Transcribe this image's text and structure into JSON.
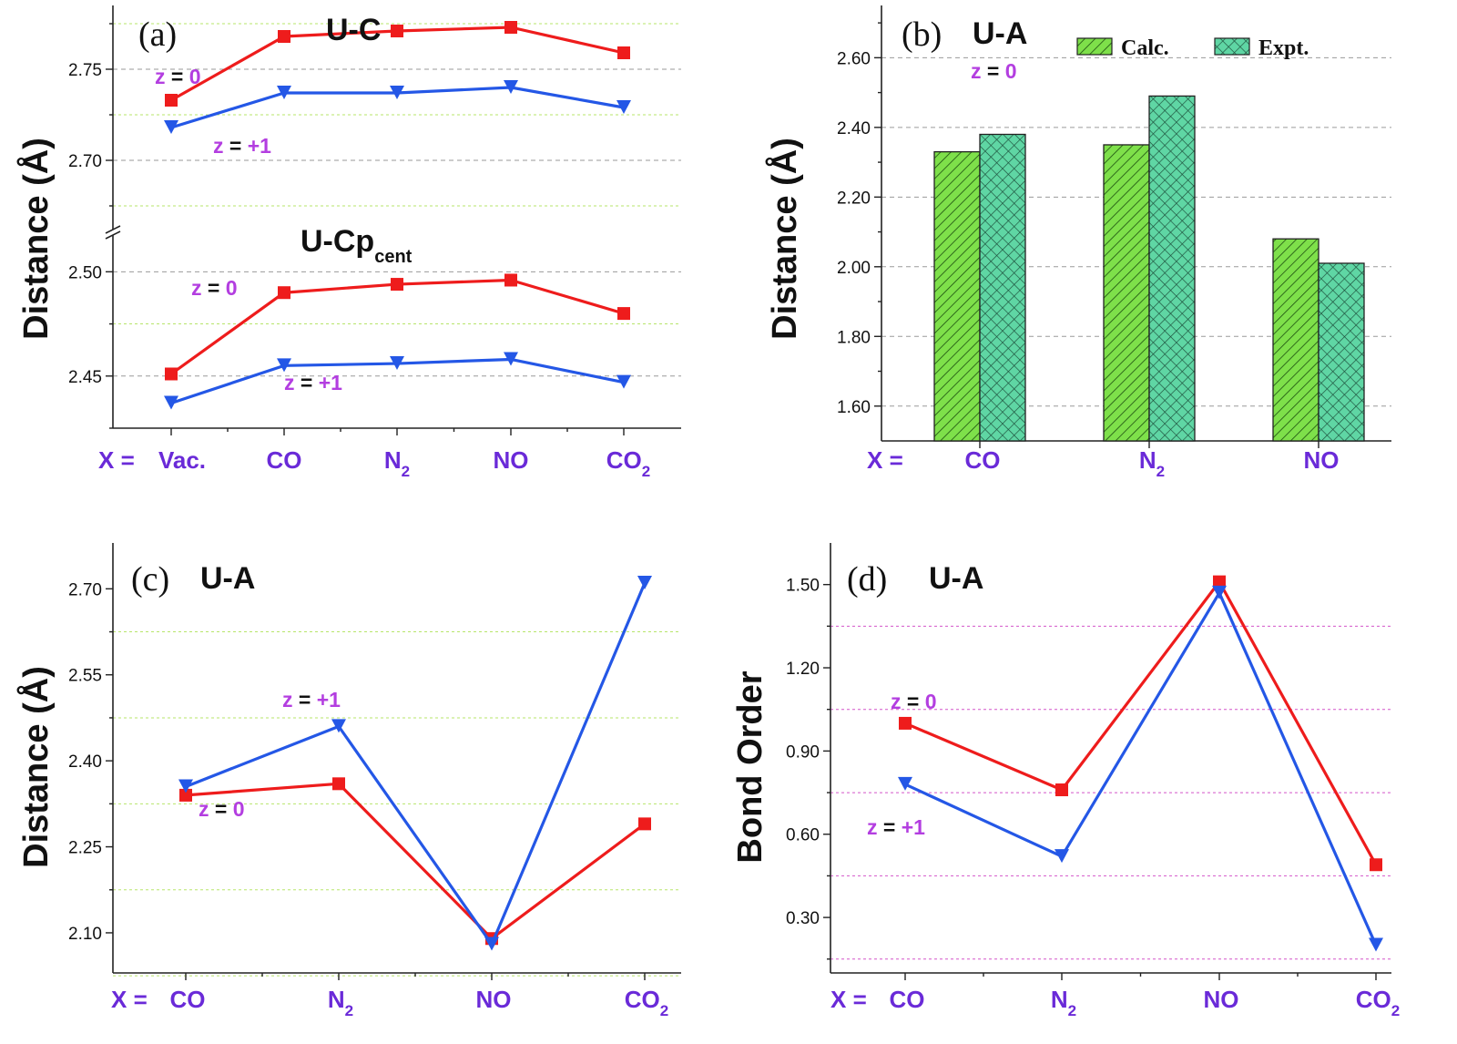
{
  "colors": {
    "z0": "#ee1c1c",
    "z1": "#2457e6",
    "label_purple": "#b33ee0",
    "category_purple": "#6a2ad8",
    "calc_fill": "#7ee04a",
    "expt_fill": "#5fd6a4",
    "grid_green": "#b7e56a",
    "grid_gray": "#9a9a9a",
    "grid_magenta": "#d455c9"
  },
  "chart_data": [
    {
      "id": "a",
      "type": "line",
      "panel_label": "(a)",
      "ylabel": "Distance (Å)",
      "x_prefix": "X =",
      "categories": [
        "Vac.",
        "CO",
        "N2",
        "NO",
        "CO2"
      ],
      "upper": {
        "title": "U-C",
        "ylim": [
          2.665,
          2.785
        ],
        "ticks": [
          "2.70",
          "2.75"
        ],
        "series": [
          {
            "name": "z = 0",
            "marker": "square",
            "values": [
              2.733,
              2.768,
              2.771,
              2.773,
              2.759
            ]
          },
          {
            "name": "z = +1",
            "marker": "triangle-down",
            "values": [
              2.718,
              2.737,
              2.737,
              2.74,
              2.729
            ]
          }
        ]
      },
      "lower": {
        "title_main": "U-Cp",
        "title_sub": "cent",
        "ylim": [
          2.425,
          2.515
        ],
        "ticks": [
          "2.45",
          "2.50"
        ],
        "series": [
          {
            "name": "z = 0",
            "marker": "square",
            "values": [
              2.451,
              2.49,
              2.494,
              2.496,
              2.48
            ]
          },
          {
            "name": "z = +1",
            "marker": "triangle-down",
            "values": [
              2.437,
              2.455,
              2.456,
              2.458,
              2.447
            ]
          }
        ]
      }
    },
    {
      "id": "b",
      "type": "bar",
      "panel_label": "(b)",
      "title": "U-A",
      "ylabel": "Distance (Å)",
      "x_prefix": "X =",
      "categories": [
        "CO",
        "N2",
        "NO"
      ],
      "ylim": [
        1.5,
        2.75
      ],
      "ticks": [
        "1.60",
        "1.80",
        "2.00",
        "2.20",
        "2.40",
        "2.60"
      ],
      "annotation": "z = 0",
      "series": [
        {
          "name": "Calc.",
          "values": [
            2.33,
            2.35,
            2.08
          ]
        },
        {
          "name": "Expt.",
          "values": [
            2.38,
            2.49,
            2.01
          ]
        }
      ]
    },
    {
      "id": "c",
      "type": "line",
      "panel_label": "(c)",
      "title": "U-A",
      "ylabel": "Distance (Å)",
      "x_prefix": "X =",
      "categories": [
        "CO",
        "N2",
        "NO",
        "CO2"
      ],
      "ylim": [
        2.03,
        2.78
      ],
      "ticks": [
        "2.10",
        "2.25",
        "2.40",
        "2.55",
        "2.70"
      ],
      "series": [
        {
          "name": "z = 0",
          "marker": "square",
          "values": [
            2.34,
            2.36,
            2.09,
            2.29
          ]
        },
        {
          "name": "z = +1",
          "marker": "triangle-down",
          "values": [
            2.355,
            2.46,
            2.08,
            2.71
          ]
        }
      ]
    },
    {
      "id": "d",
      "type": "line",
      "panel_label": "(d)",
      "title": "U-A",
      "ylabel": "Bond Order",
      "x_prefix": "X =",
      "categories": [
        "CO",
        "N2",
        "NO",
        "CO2"
      ],
      "ylim": [
        0.1,
        1.65
      ],
      "ticks": [
        "0.30",
        "0.60",
        "0.90",
        "1.20",
        "1.50"
      ],
      "series": [
        {
          "name": "z = 0",
          "marker": "square",
          "values": [
            1.0,
            0.76,
            1.51,
            0.49
          ]
        },
        {
          "name": "z = +1",
          "marker": "triangle-down",
          "values": [
            0.78,
            0.52,
            1.47,
            0.2
          ]
        }
      ]
    }
  ]
}
